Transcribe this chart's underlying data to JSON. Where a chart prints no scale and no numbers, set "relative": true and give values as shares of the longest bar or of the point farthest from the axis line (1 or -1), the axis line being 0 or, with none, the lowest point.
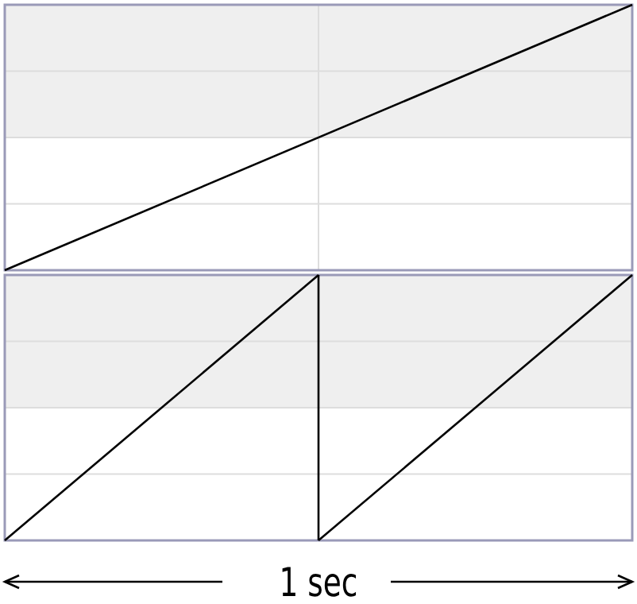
{
  "chart_data": [
    {
      "type": "line",
      "relative": true,
      "categories": [
        null,
        null
      ],
      "grid": "x",
      "marker": "none",
      "line_style": "solid",
      "series": [
        {
          "color": "#000000",
          "values": [
            0,
            1
          ]
        }
      ],
      "ref_lines": [
        {
          "axis": "y",
          "value": 0.25,
          "color": "#dddddd"
        },
        {
          "axis": "y",
          "value": 0.5,
          "color": "#dddddd"
        },
        {
          "axis": "y",
          "value": 0.75,
          "color": "#dddddd"
        }
      ]
    },
    {
      "type": "line",
      "relative": true,
      "categories": [
        null,
        null,
        null
      ],
      "marker": "none",
      "line_style": "solid",
      "series": [
        {
          "color": "#000000",
          "values": [
            0,
            1,
            null
          ]
        },
        {
          "color": "#000000",
          "values": [
            null,
            0,
            1
          ]
        }
      ],
      "ref_lines": [
        {
          "axis": "y",
          "value": 0.25,
          "color": "#dddddd"
        },
        {
          "axis": "y",
          "value": 0.5,
          "color": "#dddddd"
        },
        {
          "axis": "y",
          "value": 0.75,
          "color": "#dddddd"
        }
      ],
      "annotations": [
        "1 sec"
      ]
    }
  ]
}
